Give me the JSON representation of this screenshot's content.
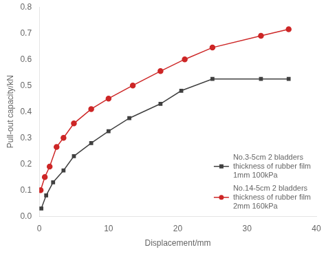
{
  "chart_data": {
    "type": "line",
    "xlabel": "Displacement/mm",
    "ylabel": "Pull-out capacity/kN",
    "xlim": [
      0,
      40
    ],
    "ylim": [
      0.0,
      0.8
    ],
    "xticks": [
      0,
      10,
      20,
      30,
      40
    ],
    "yticks": [
      {
        "value": 0,
        "label": "0.0"
      },
      0.1,
      0.2,
      0.3,
      0.4,
      0.5,
      0.6,
      0.7,
      0.8
    ],
    "grid": false,
    "legend": "lower right",
    "series": [
      {
        "name": "No.3-5cm 2 bladders\nthickness of rubber film\n1mm 100kPa",
        "color": "#404040",
        "marker": "square",
        "x": [
          0.3,
          1.0,
          2.0,
          3.5,
          5.0,
          7.5,
          10.0,
          13.0,
          17.5,
          20.5,
          25.0,
          32.0,
          36.0
        ],
        "values": [
          0.03,
          0.08,
          0.13,
          0.175,
          0.23,
          0.28,
          0.325,
          0.375,
          0.43,
          0.48,
          0.525,
          0.525,
          0.525
        ]
      },
      {
        "name": "No.14-5cm 2 bladders\nthickness of rubber film\n2mm 160kPa",
        "color": "#cd2626",
        "marker": "circle",
        "x": [
          0.2,
          0.8,
          1.5,
          2.5,
          3.5,
          5.0,
          7.5,
          10.0,
          13.5,
          17.5,
          21.0,
          25.0,
          32.0,
          36.0
        ],
        "values": [
          0.1,
          0.15,
          0.19,
          0.265,
          0.3,
          0.355,
          0.41,
          0.45,
          0.5,
          0.555,
          0.6,
          0.645,
          0.69,
          0.715
        ]
      }
    ]
  }
}
